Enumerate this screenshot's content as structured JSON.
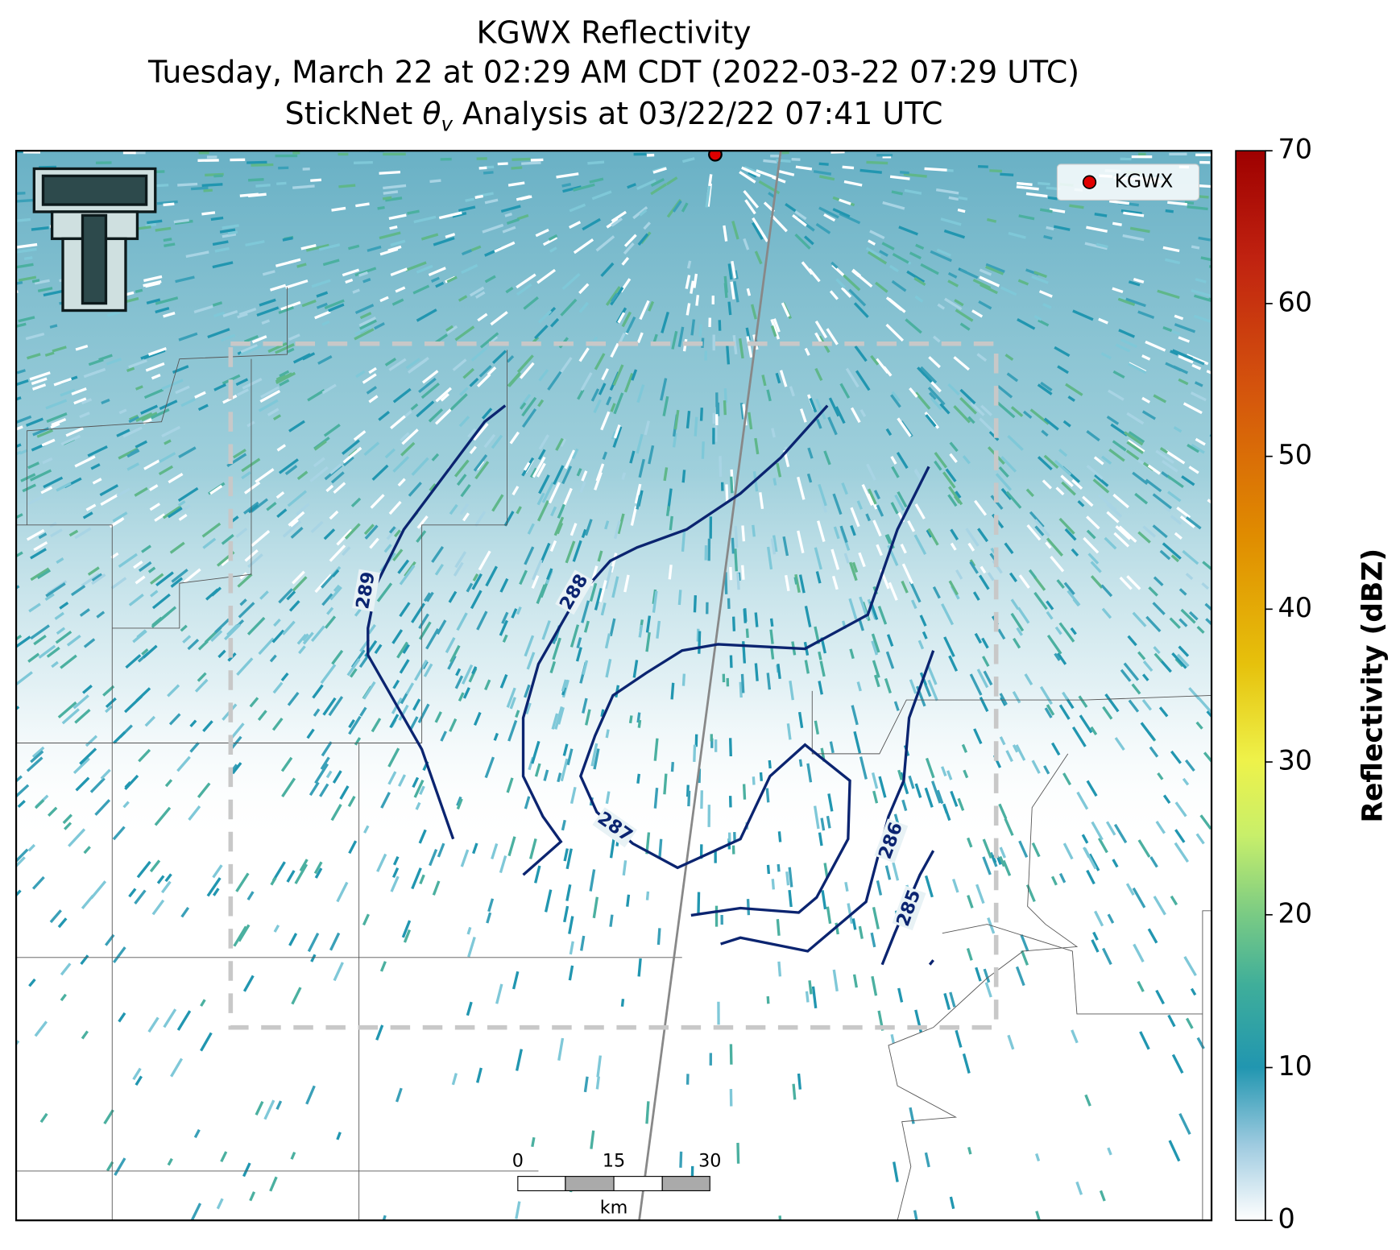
{
  "header": {
    "title_line1": "KGWX Reflectivity",
    "title_line2": "Tuesday, March 22 at 02:29 AM CDT (2022-03-22 07:29 UTC)",
    "title_line3": {
      "prefix": "StickNet",
      "symbol": "θ",
      "subscript": "v",
      "suffix": "Analysis at 03/22/22 07:41 UTC"
    }
  },
  "legend": {
    "label": "KGWX"
  },
  "colorbar": {
    "label": "Reflectivity (dBZ)",
    "lim": [
      0,
      70
    ],
    "ticks": [
      0,
      10,
      20,
      30,
      40,
      50,
      60,
      70
    ]
  },
  "contours": [
    {
      "level": 289
    },
    {
      "level": 288
    },
    {
      "level": 287
    },
    {
      "level": 286
    },
    {
      "level": 285
    }
  ],
  "scalebar": {
    "ticks": [
      0,
      15,
      30
    ],
    "unit": "km"
  }
}
